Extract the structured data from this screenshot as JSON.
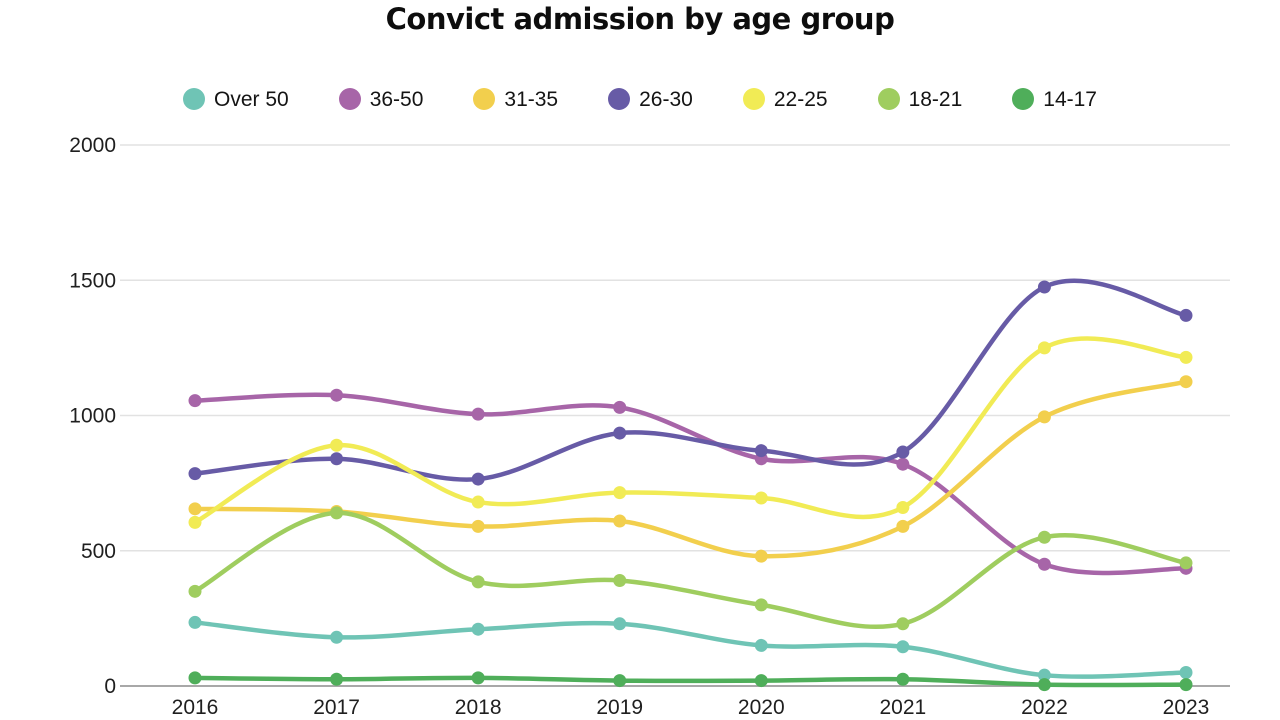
{
  "chart": {
    "title": "Convict admission by age group"
  },
  "chart_data": {
    "type": "line",
    "title": "Convict admission by age group",
    "x": [
      2016,
      2017,
      2018,
      2019,
      2020,
      2021,
      2022,
      2023
    ],
    "x_labels": [
      "2016",
      "2017",
      "2018",
      "2019",
      "2020",
      "2021",
      "2022",
      "2023"
    ],
    "series": [
      {
        "name": "Over 50",
        "color": "#6fc4b5",
        "values": [
          235,
          180,
          210,
          230,
          150,
          145,
          40,
          50
        ]
      },
      {
        "name": "36-50",
        "color": "#a765a8",
        "values": [
          1055,
          1075,
          1005,
          1030,
          840,
          820,
          450,
          435
        ]
      },
      {
        "name": "31-35",
        "color": "#f2cf4d",
        "values": [
          655,
          645,
          590,
          610,
          480,
          590,
          995,
          1125
        ]
      },
      {
        "name": "26-30",
        "color": "#675ba6",
        "values": [
          785,
          840,
          765,
          935,
          870,
          865,
          1475,
          1370
        ]
      },
      {
        "name": "22-25",
        "color": "#f1eb55",
        "values": [
          605,
          890,
          680,
          715,
          695,
          660,
          1250,
          1215
        ]
      },
      {
        "name": "18-21",
        "color": "#9fcd5f",
        "values": [
          350,
          640,
          385,
          390,
          300,
          230,
          550,
          455
        ]
      },
      {
        "name": "14-17",
        "color": "#4fae5a",
        "values": [
          30,
          25,
          30,
          20,
          20,
          25,
          5,
          5
        ]
      }
    ],
    "ylim": [
      0,
      2000
    ],
    "yticks": [
      0,
      500,
      1000,
      1500,
      2000
    ],
    "grid": true,
    "legend_position": "top",
    "grid_color": "#e2e2e2",
    "axis_line_color": "#a8a8a8",
    "text_color": "#1f1f1f"
  }
}
